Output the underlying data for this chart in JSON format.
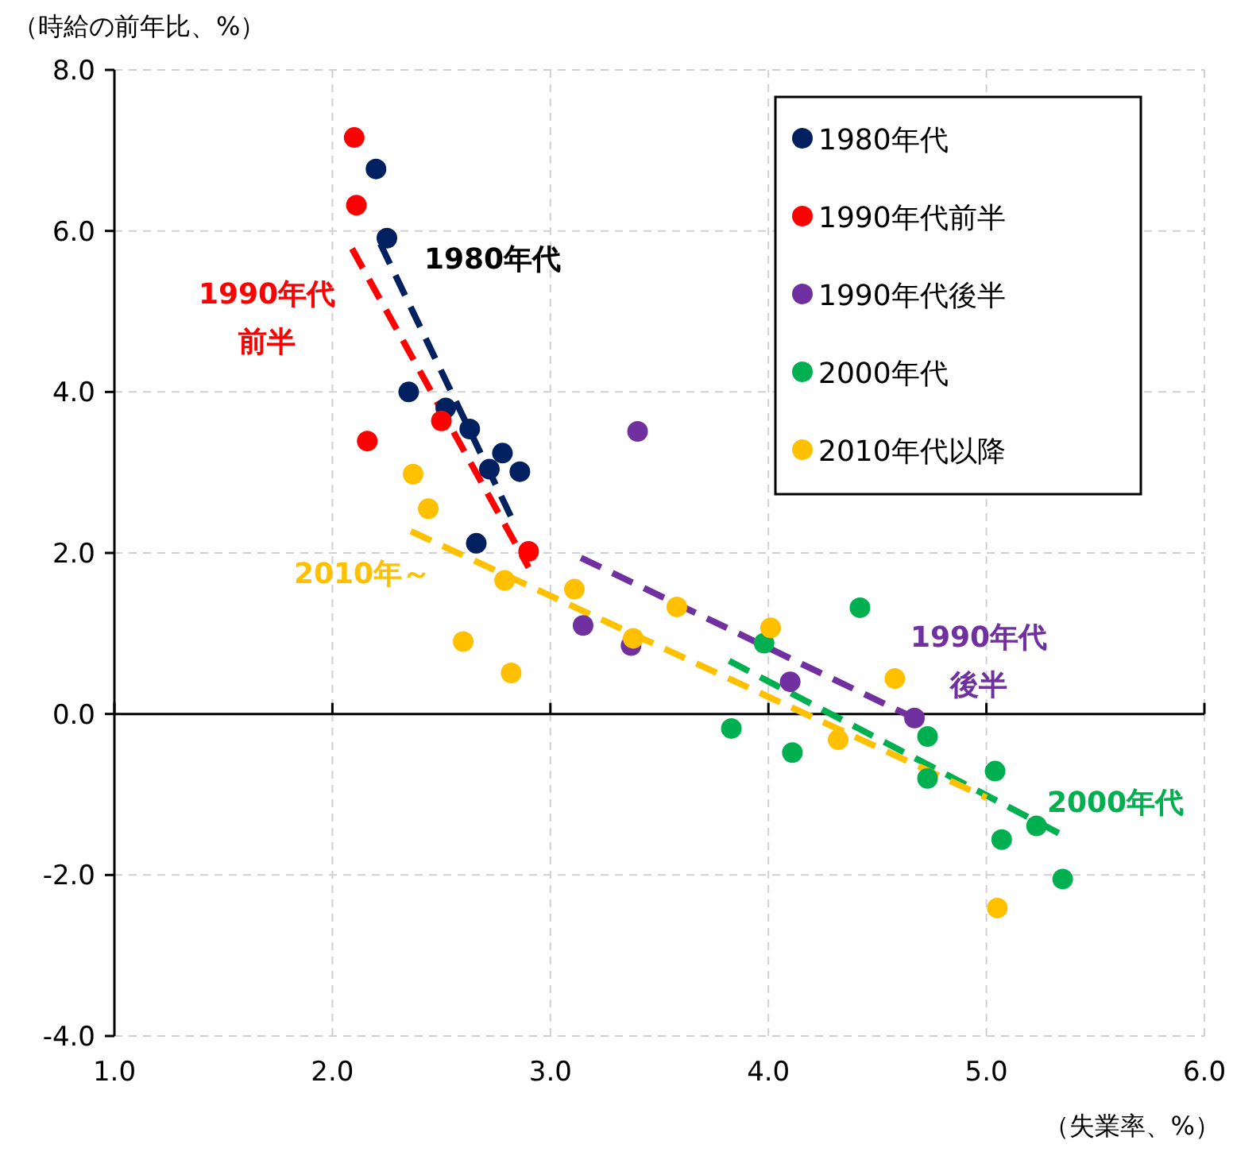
{
  "chart_data": {
    "type": "scatter",
    "xlabel": "（失業率、%）",
    "ylabel": "（時給の前年比、%）",
    "xlim": [
      1,
      6
    ],
    "xticks": [
      {
        "value": 1,
        "label": "1.0"
      },
      {
        "value": 2,
        "label": "2.0"
      },
      {
        "value": 3,
        "label": "3.0"
      },
      {
        "value": 4,
        "label": "4.0"
      },
      {
        "value": 5,
        "label": "5.0"
      },
      {
        "value": 6,
        "label": "6.0"
      }
    ],
    "ylim": [
      -4,
      8
    ],
    "yticks": [
      {
        "value": -4,
        "label": "-4.0"
      },
      {
        "value": -2,
        "label": "-2.0"
      },
      {
        "value": 0,
        "label": "0.0"
      },
      {
        "value": 2,
        "label": "2.0"
      },
      {
        "value": 4,
        "label": "4.0"
      },
      {
        "value": 6,
        "label": "6.0"
      },
      {
        "value": 8,
        "label": "8.0"
      }
    ],
    "grid": true,
    "legend": "top right",
    "series": [
      {
        "name": "1980年代",
        "marker": "circle",
        "color": "#002060",
        "x": [
          2.2,
          2.25,
          2.35,
          2.52,
          2.63,
          2.78,
          2.72,
          2.86,
          2.66
        ],
        "values": [
          6.77,
          5.91,
          4.0,
          3.8,
          3.54,
          3.24,
          3.04,
          3.01,
          2.12
        ]
      },
      {
        "name": "1990年代前半",
        "marker": "circle",
        "color": "#ff0000",
        "x": [
          2.1,
          2.11,
          2.16,
          2.5,
          2.9
        ],
        "values": [
          7.16,
          6.32,
          3.39,
          3.64,
          2.02
        ]
      },
      {
        "name": "1990年代後半",
        "marker": "circle",
        "color": "#7030a0",
        "x": [
          3.4,
          3.15,
          3.37,
          4.1,
          4.67
        ],
        "values": [
          3.51,
          1.1,
          0.85,
          0.4,
          -0.05
        ]
      },
      {
        "name": "2000年代",
        "marker": "circle",
        "color": "#00b050",
        "x": [
          4.42,
          3.98,
          3.83,
          4.11,
          4.73,
          4.73,
          5.04,
          5.07,
          5.23,
          5.35
        ],
        "values": [
          1.32,
          0.88,
          -0.18,
          -0.48,
          -0.28,
          -0.8,
          -0.71,
          -1.56,
          -1.39,
          -2.05
        ]
      },
      {
        "name": "2010年代以降",
        "marker": "circle",
        "color": "#ffc000",
        "x": [
          2.37,
          2.44,
          2.6,
          2.82,
          2.79,
          3.11,
          3.38,
          3.58,
          4.01,
          4.58,
          4.32,
          5.05
        ],
        "values": [
          2.98,
          2.55,
          0.9,
          0.51,
          1.66,
          1.55,
          0.94,
          1.33,
          1.07,
          0.44,
          -0.32,
          -2.41
        ]
      },
      {
        "type": "line",
        "line_style": "dashed",
        "color": "#002060",
        "x": [
          2.22,
          2.83
        ],
        "values": [
          5.84,
          2.39
        ]
      },
      {
        "type": "line",
        "line_style": "dashed",
        "color": "#ff0000",
        "x": [
          2.09,
          2.9
        ],
        "values": [
          5.78,
          1.82
        ]
      },
      {
        "type": "line",
        "line_style": "dashed",
        "color": "#7030a0",
        "x": [
          3.14,
          4.63
        ],
        "values": [
          1.94,
          0.0
        ]
      },
      {
        "type": "line",
        "line_style": "dashed",
        "color": "#00b050",
        "x": [
          3.82,
          5.36
        ],
        "values": [
          0.66,
          -1.52
        ]
      },
      {
        "type": "line",
        "line_style": "dashed",
        "color": "#ffc000",
        "x": [
          2.36,
          5.0
        ],
        "values": [
          2.27,
          -1.04
        ]
      }
    ],
    "annotations": [
      "1980年代",
      "1990年代前半",
      "2010年～",
      "1990年代後半",
      "2000年代"
    ]
  }
}
